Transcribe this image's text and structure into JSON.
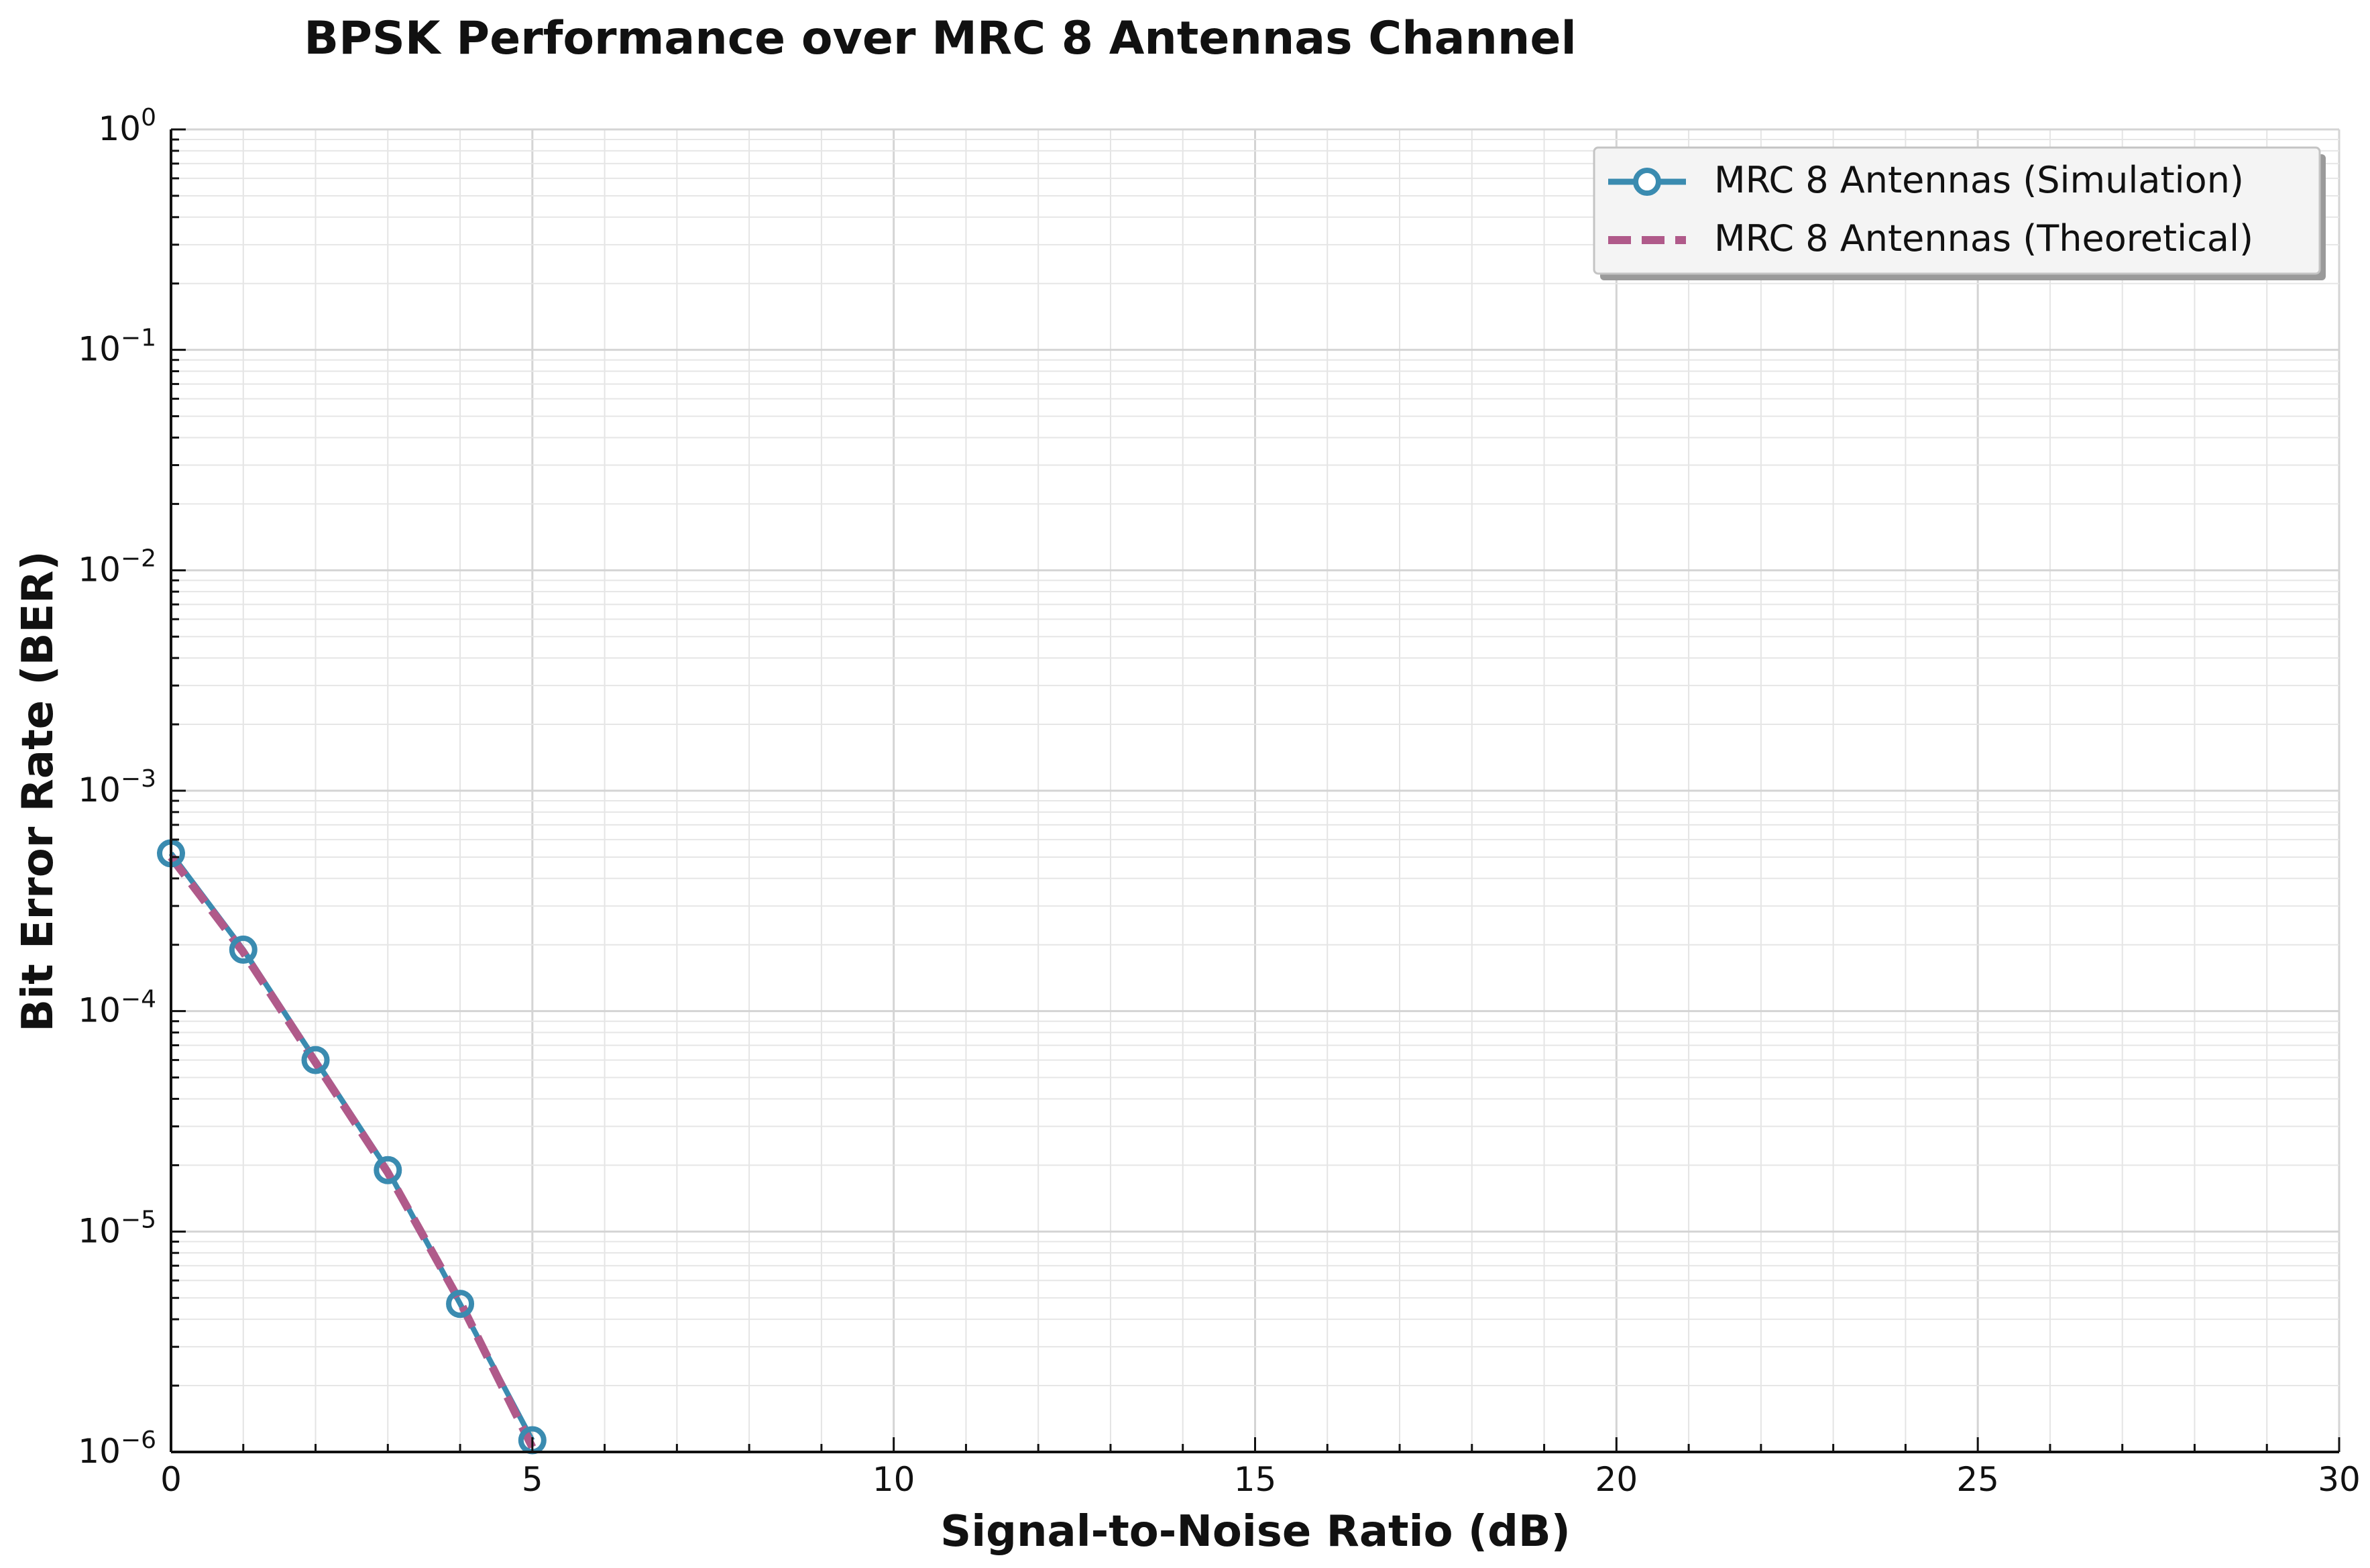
{
  "chart_data": {
    "type": "line",
    "title": "BPSK Performance over MRC 8 Antennas Channel",
    "xlabel": "Signal-to-Noise Ratio (dB)",
    "ylabel": "Bit Error Rate (BER)",
    "xlim": [
      0,
      30
    ],
    "ylim": [
      1e-06,
      1
    ],
    "yscale": "log",
    "xticks": [
      0,
      5,
      10,
      15,
      20,
      25,
      30
    ],
    "xtick_labels": [
      "0",
      "5",
      "10",
      "15",
      "20",
      "25",
      "30"
    ],
    "yticks": [
      {
        "value": 1,
        "base": "10",
        "exp": "0"
      },
      {
        "value": 0.1,
        "base": "10",
        "exp": "−1"
      },
      {
        "value": 0.01,
        "base": "10",
        "exp": "−2"
      },
      {
        "value": 0.001,
        "base": "10",
        "exp": "−3"
      },
      {
        "value": 0.0001,
        "base": "10",
        "exp": "−4"
      },
      {
        "value": 1e-05,
        "base": "10",
        "exp": "−5"
      },
      {
        "value": 1e-06,
        "base": "10",
        "exp": "−6"
      }
    ],
    "grid": true,
    "legend_position": "top-right",
    "series": [
      {
        "name": "MRC 8 Antennas (Simulation)",
        "color": "#3a8bb0",
        "style": "solid-circle-markers",
        "x": [
          0,
          1,
          2,
          3,
          4,
          5
        ],
        "y": [
          0.00052,
          0.00019,
          6e-05,
          1.9e-05,
          4.7e-06,
          1.13e-06
        ]
      },
      {
        "name": "MRC 8 Antennas (Theoretical)",
        "color": "#b05a8a",
        "style": "dashed",
        "x": [
          0,
          1,
          2,
          3,
          4,
          5
        ],
        "y": [
          0.0005,
          0.000185,
          5.85e-05,
          1.85e-05,
          4.8e-06,
          1.05e-06
        ]
      }
    ]
  }
}
